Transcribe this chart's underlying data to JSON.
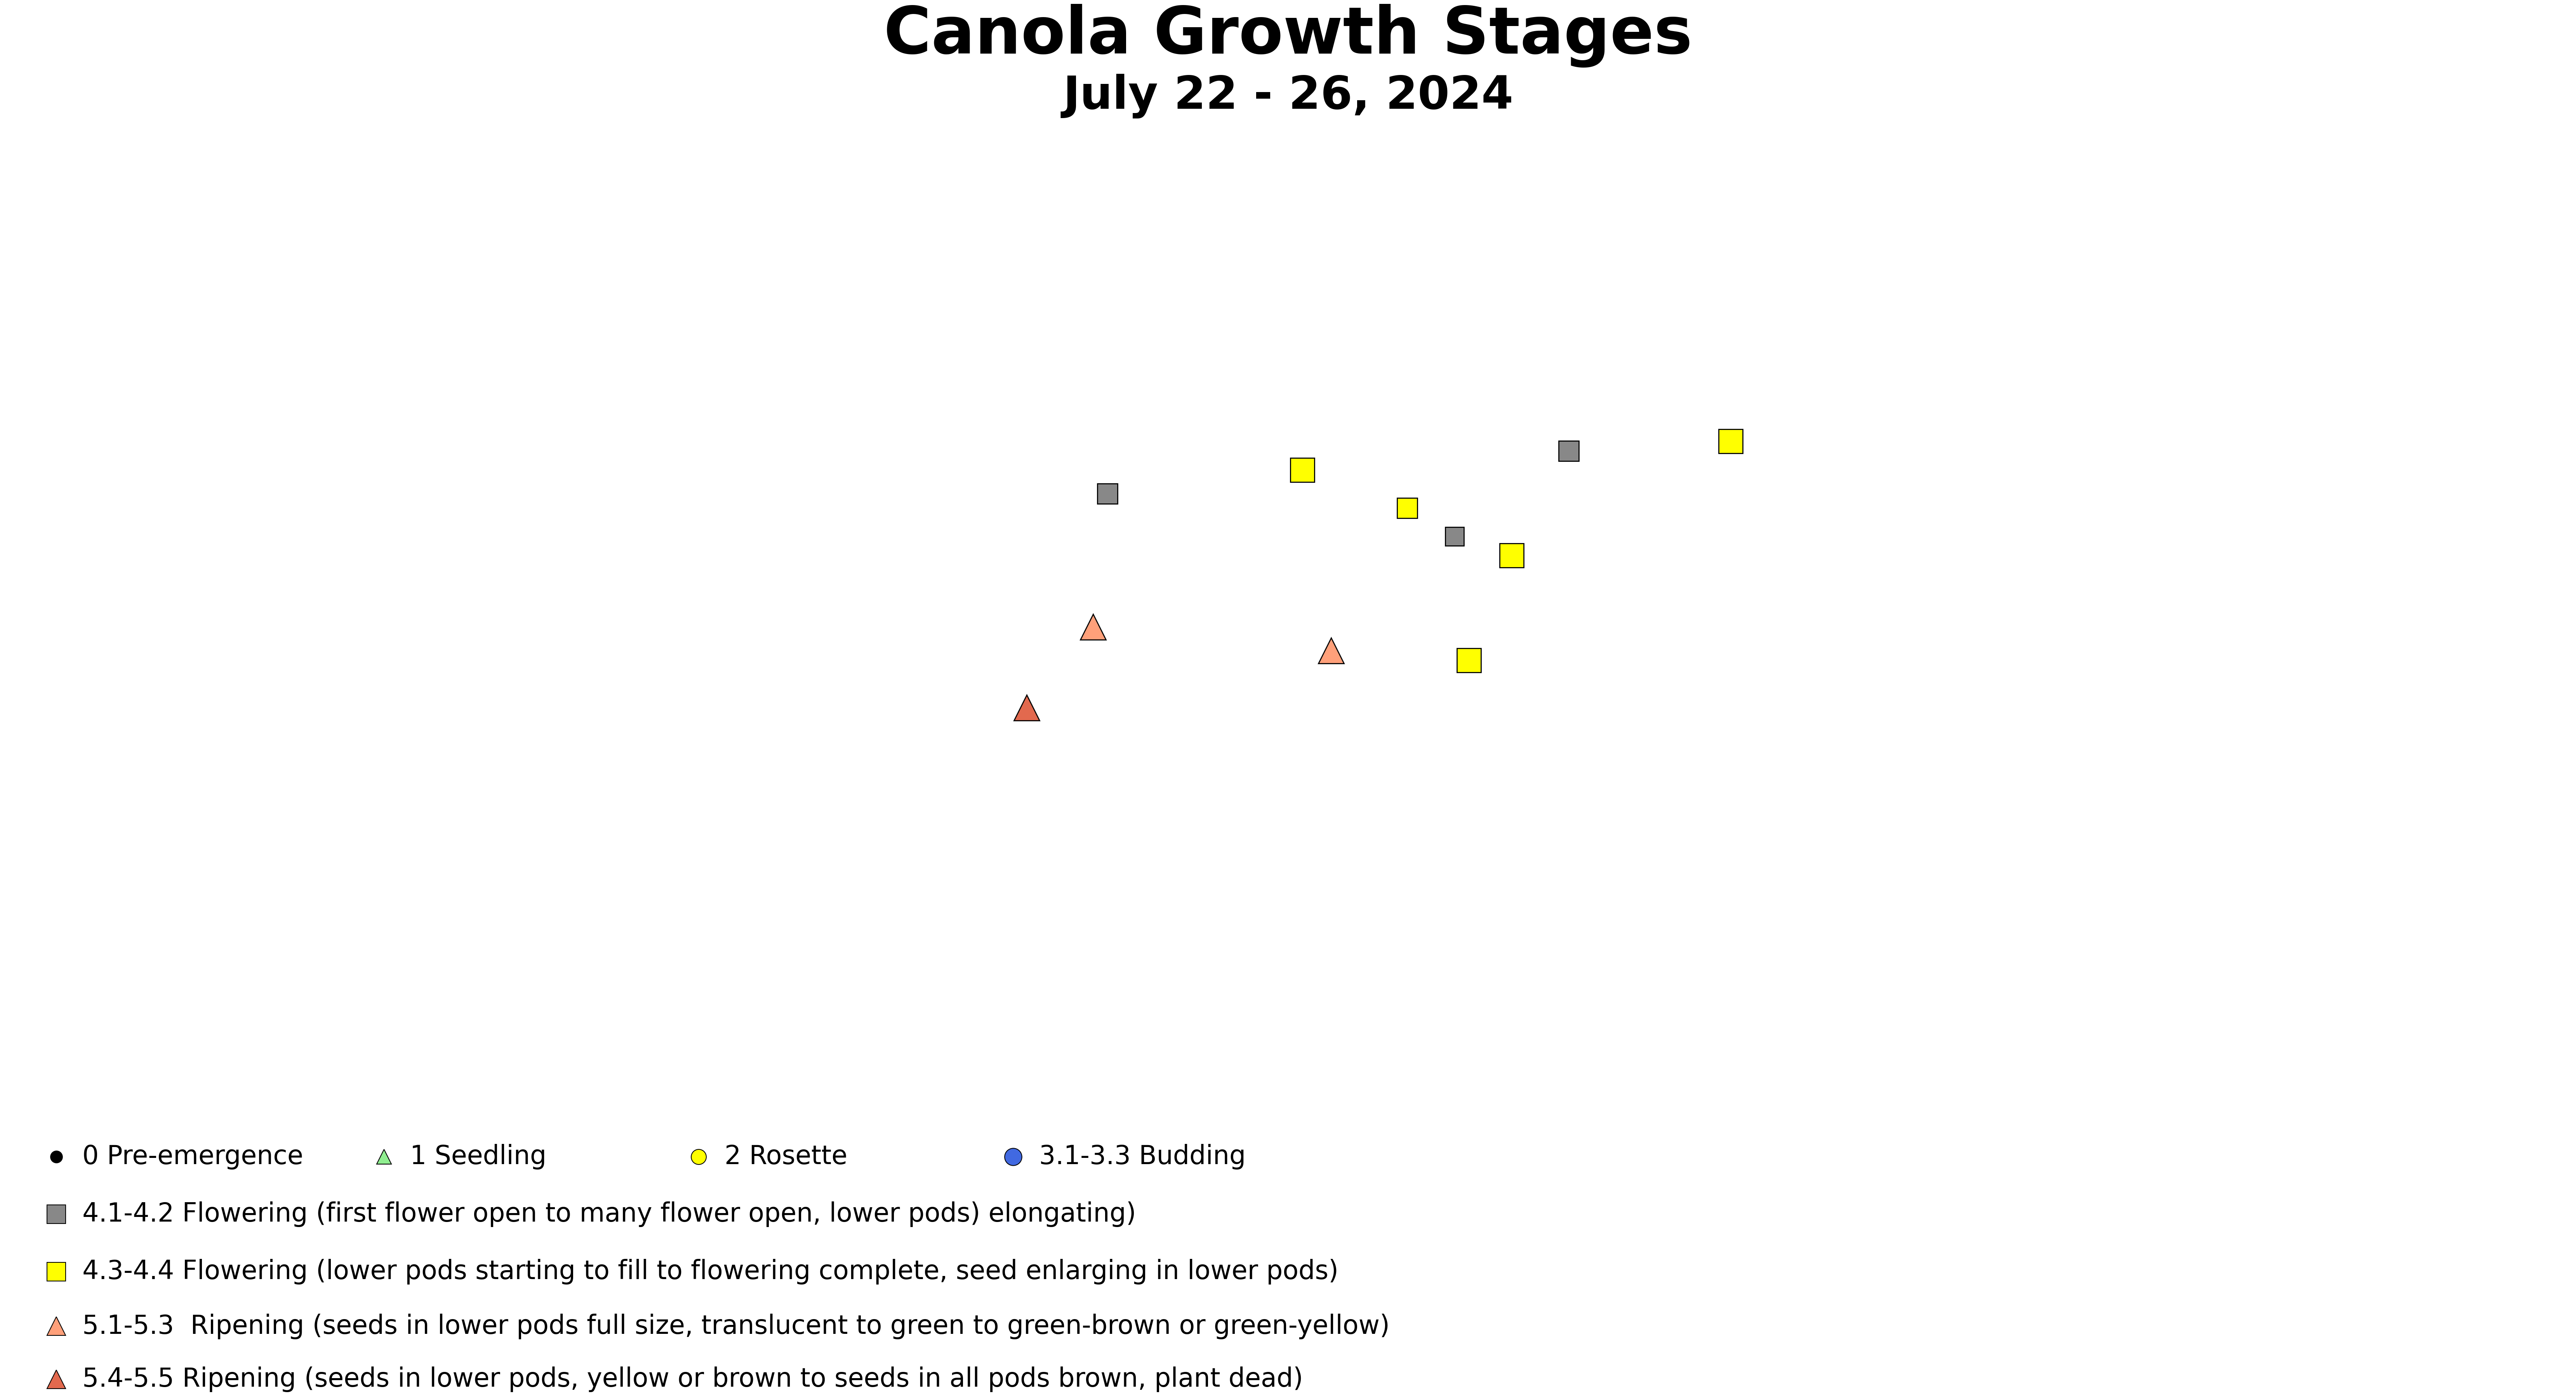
{
  "title": "Canola Growth Stages",
  "subtitle": "July 22 - 26, 2024",
  "title_fontsize": 120,
  "subtitle_fontsize": 85,
  "background_color": "#ffffff",
  "xlim": [
    -115.5,
    -88.5
  ],
  "ylim": [
    42.4,
    52.5
  ],
  "markers": [
    {
      "lon": -101.85,
      "lat": 48.85,
      "shape": "s",
      "color": "#ffff00",
      "edgecolor": "#000000",
      "ms": 45
    },
    {
      "lon": -99.05,
      "lat": 49.05,
      "shape": "s",
      "color": "#888888",
      "edgecolor": "#000000",
      "ms": 38
    },
    {
      "lon": -97.35,
      "lat": 49.15,
      "shape": "s",
      "color": "#ffff00",
      "edgecolor": "#000000",
      "ms": 45
    },
    {
      "lon": -103.9,
      "lat": 48.6,
      "shape": "s",
      "color": "#888888",
      "edgecolor": "#000000",
      "ms": 38
    },
    {
      "lon": -100.75,
      "lat": 48.45,
      "shape": "s",
      "color": "#ffff00",
      "edgecolor": "#000000",
      "ms": 38
    },
    {
      "lon": -100.25,
      "lat": 48.15,
      "shape": "s",
      "color": "#888888",
      "edgecolor": "#000000",
      "ms": 35
    },
    {
      "lon": -99.65,
      "lat": 47.95,
      "shape": "s",
      "color": "#ffff00",
      "edgecolor": "#000000",
      "ms": 45
    },
    {
      "lon": -100.1,
      "lat": 46.85,
      "shape": "s",
      "color": "#ffff00",
      "edgecolor": "#000000",
      "ms": 45
    },
    {
      "lon": -104.05,
      "lat": 47.2,
      "shape": "^",
      "color": "#FFA07A",
      "edgecolor": "#000000",
      "ms": 48
    },
    {
      "lon": -101.55,
      "lat": 46.95,
      "shape": "^",
      "color": "#FFA07A",
      "edgecolor": "#000000",
      "ms": 48
    },
    {
      "lon": -104.75,
      "lat": 46.35,
      "shape": "^",
      "color": "#E2694E",
      "edgecolor": "#000000",
      "ms": 48
    }
  ],
  "legend_row1": [
    {
      "label": "0 Pre-emergence",
      "marker": "o",
      "color": "#000000",
      "edgecolor": "#000000",
      "ms": 22
    },
    {
      "label": "1 Seedling",
      "marker": "^",
      "color": "#90EE90",
      "edgecolor": "#000000",
      "ms": 28
    },
    {
      "label": "2 Rosette",
      "marker": "o",
      "color": "#ffff00",
      "edgecolor": "#000000",
      "ms": 28
    },
    {
      "label": "3.1-3.3 Budding",
      "marker": "o",
      "color": "#4169E1",
      "edgecolor": "#000000",
      "ms": 32
    }
  ],
  "legend_rows": [
    {
      "label": "4.1-4.2 Flowering (first flower open to many flower open, lower pods) elongating)",
      "marker": "s",
      "color": "#888888",
      "edgecolor": "#000000",
      "ms": 34
    },
    {
      "label": "4.3-4.4 Flowering (lower pods starting to fill to flowering complete, seed enlarging in lower pods)",
      "marker": "s",
      "color": "#ffff00",
      "edgecolor": "#000000",
      "ms": 34
    },
    {
      "label": "5.1-5.3  Ripening (seeds in lower pods full size, translucent to green to green-brown or green-yellow)",
      "marker": "^",
      "color": "#FFA07A",
      "edgecolor": "#000000",
      "ms": 34
    },
    {
      "label": "5.4-5.5 Ripening (seeds in lower pods, yellow or brown to seeds in all pods brown, plant dead)",
      "marker": "^",
      "color": "#E2694E",
      "edgecolor": "#000000",
      "ms": 34
    }
  ],
  "legend_fontsize": 48,
  "state_linewidth": 3.0,
  "county_linewidth": 1.0
}
